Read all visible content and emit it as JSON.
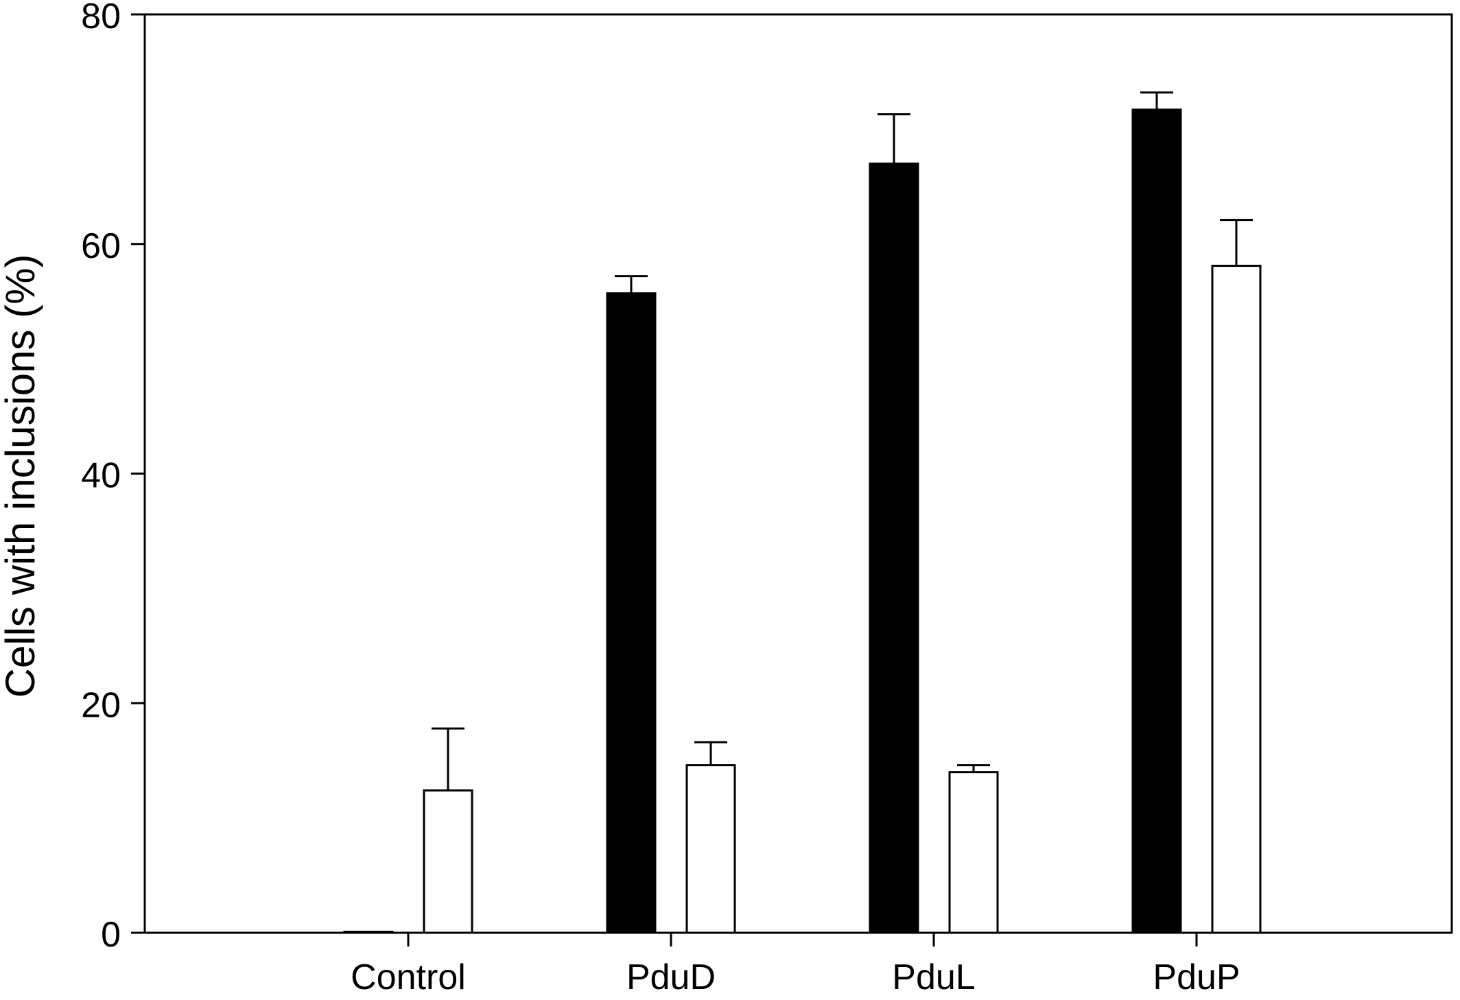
{
  "chart_data": {
    "type": "bar",
    "title": "",
    "xlabel": "",
    "ylabel": "Cells with inclusions (%)",
    "categories": [
      "Control",
      "PduD",
      "PduL",
      "PduP"
    ],
    "ylim": [
      0,
      80
    ],
    "yticks": [
      0,
      20,
      40,
      60,
      80
    ],
    "grid": false,
    "legend": "none",
    "series": [
      {
        "fill": "#000000",
        "values": [
          0,
          55.7,
          67.0,
          71.7
        ],
        "errors": [
          0,
          1.5,
          4.3,
          1.5
        ]
      },
      {
        "fill": "#ffffff",
        "values": [
          12.4,
          14.6,
          14.0,
          58.1
        ],
        "errors": [
          5.4,
          2.0,
          0.6,
          4.0
        ]
      }
    ],
    "colors": {
      "axis": "#000000",
      "background": "#ffffff"
    }
  }
}
